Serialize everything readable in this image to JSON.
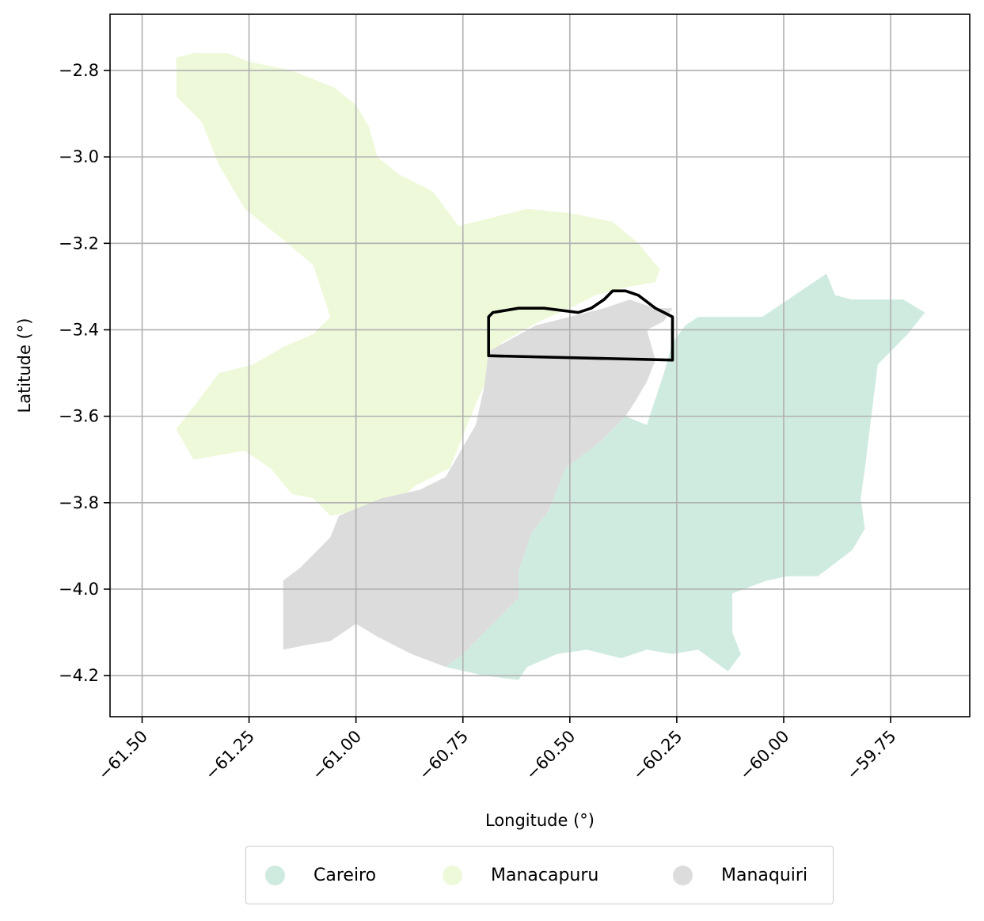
{
  "chart_data": {
    "type": "map",
    "xlabel": "Longitude (°)",
    "ylabel": "Latitude (°)",
    "xlim": [
      -61.575,
      -59.565
    ],
    "ylim": [
      -4.295,
      -2.67
    ],
    "x_ticks": [
      -61.5,
      -61.25,
      -61.0,
      -60.75,
      -60.5,
      -60.25,
      -60.0,
      -59.75
    ],
    "x_tick_labels": [
      "−61.50",
      "−61.25",
      "−61.00",
      "−60.75",
      "−60.50",
      "−60.25",
      "−60.00",
      "−59.75"
    ],
    "y_ticks": [
      -2.8,
      -3.0,
      -3.2,
      -3.4,
      -3.6,
      -3.8,
      -4.0,
      -4.2
    ],
    "y_tick_labels": [
      "−2.8",
      "−3.0",
      "−3.2",
      "−3.4",
      "−3.6",
      "−3.8",
      "−4.0",
      "−4.2"
    ],
    "grid": true,
    "legend_position": "bottom-center",
    "regions": [
      {
        "name": "Careiro",
        "color": "#cfebdf",
        "polygon": [
          [
            -60.2,
            -3.37
          ],
          [
            -60.05,
            -3.37
          ],
          [
            -59.9,
            -3.27
          ],
          [
            -59.88,
            -3.32
          ],
          [
            -59.84,
            -3.33
          ],
          [
            -59.72,
            -3.33
          ],
          [
            -59.67,
            -3.36
          ],
          [
            -59.71,
            -3.41
          ],
          [
            -59.76,
            -3.46
          ],
          [
            -59.78,
            -3.48
          ],
          [
            -59.81,
            -3.72
          ],
          [
            -59.82,
            -3.79
          ],
          [
            -59.81,
            -3.86
          ],
          [
            -59.84,
            -3.91
          ],
          [
            -59.88,
            -3.94
          ],
          [
            -59.92,
            -3.97
          ],
          [
            -59.99,
            -3.97
          ],
          [
            -60.04,
            -3.98
          ],
          [
            -60.12,
            -4.01
          ],
          [
            -60.12,
            -4.1
          ],
          [
            -60.1,
            -4.15
          ],
          [
            -60.13,
            -4.19
          ],
          [
            -60.2,
            -4.14
          ],
          [
            -60.26,
            -4.15
          ],
          [
            -60.32,
            -4.14
          ],
          [
            -60.38,
            -4.16
          ],
          [
            -60.46,
            -4.14
          ],
          [
            -60.53,
            -4.15
          ],
          [
            -60.6,
            -4.18
          ],
          [
            -60.62,
            -4.21
          ],
          [
            -60.7,
            -4.2
          ],
          [
            -60.79,
            -4.18
          ],
          [
            -60.75,
            -4.15
          ],
          [
            -60.62,
            -4.02
          ],
          [
            -60.62,
            -3.96
          ],
          [
            -60.59,
            -3.87
          ],
          [
            -60.55,
            -3.82
          ],
          [
            -60.51,
            -3.72
          ],
          [
            -60.47,
            -3.69
          ],
          [
            -60.43,
            -3.66
          ],
          [
            -60.37,
            -3.6
          ],
          [
            -60.32,
            -3.62
          ],
          [
            -60.3,
            -3.56
          ],
          [
            -60.28,
            -3.5
          ],
          [
            -60.26,
            -3.43
          ],
          [
            -60.23,
            -3.39
          ],
          [
            -60.2,
            -3.37
          ]
        ]
      },
      {
        "name": "Manacapuru",
        "color": "#eef9da",
        "polygon": [
          [
            -61.42,
            -2.77
          ],
          [
            -61.38,
            -2.76
          ],
          [
            -61.3,
            -2.76
          ],
          [
            -61.25,
            -2.78
          ],
          [
            -61.15,
            -2.8
          ],
          [
            -61.05,
            -2.84
          ],
          [
            -61.0,
            -2.88
          ],
          [
            -60.97,
            -2.93
          ],
          [
            -60.95,
            -3.0
          ],
          [
            -60.9,
            -3.04
          ],
          [
            -60.82,
            -3.08
          ],
          [
            -60.76,
            -3.16
          ],
          [
            -60.68,
            -3.14
          ],
          [
            -60.6,
            -3.12
          ],
          [
            -60.5,
            -3.13
          ],
          [
            -60.4,
            -3.15
          ],
          [
            -60.34,
            -3.2
          ],
          [
            -60.29,
            -3.26
          ],
          [
            -60.3,
            -3.29
          ],
          [
            -60.36,
            -3.3
          ],
          [
            -60.44,
            -3.32
          ],
          [
            -60.5,
            -3.35
          ],
          [
            -60.57,
            -3.38
          ],
          [
            -60.66,
            -3.43
          ],
          [
            -60.68,
            -3.49
          ],
          [
            -60.71,
            -3.55
          ],
          [
            -60.74,
            -3.62
          ],
          [
            -60.78,
            -3.72
          ],
          [
            -60.86,
            -3.76
          ],
          [
            -60.92,
            -3.81
          ],
          [
            -61.0,
            -3.82
          ],
          [
            -61.06,
            -3.83
          ],
          [
            -61.1,
            -3.79
          ],
          [
            -61.15,
            -3.78
          ],
          [
            -61.2,
            -3.72
          ],
          [
            -61.26,
            -3.68
          ],
          [
            -61.38,
            -3.7
          ],
          [
            -61.42,
            -3.63
          ],
          [
            -61.32,
            -3.5
          ],
          [
            -61.24,
            -3.48
          ],
          [
            -61.17,
            -3.44
          ],
          [
            -61.1,
            -3.41
          ],
          [
            -61.06,
            -3.37
          ],
          [
            -61.1,
            -3.25
          ],
          [
            -61.16,
            -3.2
          ],
          [
            -61.26,
            -3.12
          ],
          [
            -61.32,
            -3.02
          ],
          [
            -61.36,
            -2.92
          ],
          [
            -61.42,
            -2.86
          ],
          [
            -61.42,
            -2.77
          ]
        ]
      },
      {
        "name": "Manaquiri",
        "color": "#dcdcdc",
        "polygon": [
          [
            -60.69,
            -3.45
          ],
          [
            -60.58,
            -3.39
          ],
          [
            -60.5,
            -3.37
          ],
          [
            -60.42,
            -3.35
          ],
          [
            -60.36,
            -3.33
          ],
          [
            -60.3,
            -3.35
          ],
          [
            -60.26,
            -3.35
          ],
          [
            -60.28,
            -3.38
          ],
          [
            -60.32,
            -3.4
          ],
          [
            -60.3,
            -3.47
          ],
          [
            -60.32,
            -3.52
          ],
          [
            -60.35,
            -3.57
          ],
          [
            -60.37,
            -3.6
          ],
          [
            -60.43,
            -3.66
          ],
          [
            -60.47,
            -3.69
          ],
          [
            -60.51,
            -3.72
          ],
          [
            -60.55,
            -3.82
          ],
          [
            -60.59,
            -3.87
          ],
          [
            -60.62,
            -3.96
          ],
          [
            -60.62,
            -4.02
          ],
          [
            -60.75,
            -4.15
          ],
          [
            -60.79,
            -4.18
          ],
          [
            -60.87,
            -4.15
          ],
          [
            -60.95,
            -4.11
          ],
          [
            -61.0,
            -4.08
          ],
          [
            -61.06,
            -4.12
          ],
          [
            -61.12,
            -4.13
          ],
          [
            -61.17,
            -4.14
          ],
          [
            -61.17,
            -3.98
          ],
          [
            -61.13,
            -3.95
          ],
          [
            -61.06,
            -3.88
          ],
          [
            -61.04,
            -3.83
          ],
          [
            -60.94,
            -3.79
          ],
          [
            -60.85,
            -3.77
          ],
          [
            -60.79,
            -3.74
          ],
          [
            -60.72,
            -3.62
          ],
          [
            -60.7,
            -3.53
          ],
          [
            -60.69,
            -3.45
          ]
        ]
      }
    ],
    "outline": [
      [
        -60.69,
        -3.37
      ],
      [
        -60.68,
        -3.36
      ],
      [
        -60.62,
        -3.35
      ],
      [
        -60.56,
        -3.35
      ],
      [
        -60.48,
        -3.36
      ],
      [
        -60.45,
        -3.35
      ],
      [
        -60.42,
        -3.33
      ],
      [
        -60.4,
        -3.31
      ],
      [
        -60.37,
        -3.31
      ],
      [
        -60.34,
        -3.32
      ],
      [
        -60.3,
        -3.35
      ],
      [
        -60.28,
        -3.36
      ],
      [
        -60.26,
        -3.37
      ],
      [
        -60.26,
        -3.46
      ],
      [
        -60.26,
        -3.47
      ],
      [
        -60.69,
        -3.46
      ],
      [
        -60.69,
        -3.37
      ]
    ]
  },
  "legend": {
    "items": [
      {
        "label": "Careiro",
        "color": "#cfebdf"
      },
      {
        "label": "Manacapuru",
        "color": "#eef9da"
      },
      {
        "label": "Manaquiri",
        "color": "#dcdcdc"
      }
    ]
  }
}
